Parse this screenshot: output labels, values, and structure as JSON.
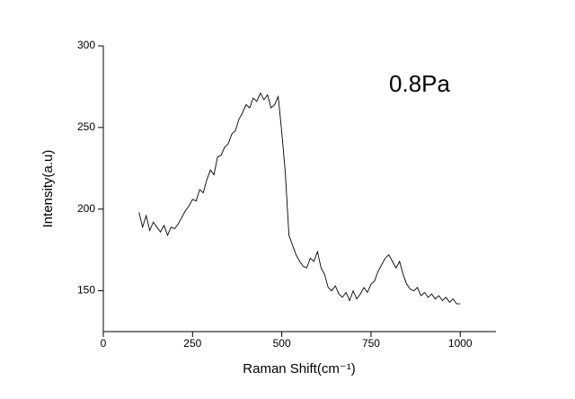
{
  "chart_data": {
    "type": "line",
    "x_label": "Raman Shift(cm⁻¹)",
    "y_label": "Intensity(a.u)",
    "annotation": "0.8Pa",
    "x": [
      100,
      110,
      120,
      130,
      140,
      150,
      160,
      170,
      180,
      190,
      200,
      210,
      220,
      230,
      240,
      250,
      260,
      270,
      280,
      290,
      300,
      310,
      320,
      330,
      340,
      350,
      360,
      370,
      380,
      390,
      400,
      410,
      420,
      430,
      440,
      450,
      460,
      470,
      480,
      490,
      500,
      510,
      520,
      530,
      540,
      550,
      560,
      570,
      580,
      590,
      600,
      610,
      620,
      630,
      640,
      650,
      660,
      670,
      680,
      690,
      700,
      710,
      720,
      730,
      740,
      750,
      760,
      770,
      780,
      790,
      800,
      810,
      820,
      830,
      840,
      850,
      860,
      870,
      880,
      890,
      900,
      910,
      920,
      930,
      940,
      950,
      960,
      970,
      980,
      990,
      1000
    ],
    "series": [
      {
        "name": "0.8Pa",
        "color": "#000000",
        "values": [
          198,
          189,
          196,
          187,
          192,
          189,
          186,
          190,
          184,
          189,
          188,
          191,
          195,
          199,
          202,
          206,
          205,
          212,
          210,
          218,
          224,
          221,
          232,
          233,
          238,
          240,
          246,
          248,
          255,
          259,
          264,
          262,
          268,
          266,
          271,
          267,
          270,
          262,
          264,
          269,
          247,
          222,
          184,
          178,
          172,
          168,
          165,
          164,
          170,
          168,
          174,
          164,
          160,
          152,
          150,
          153,
          148,
          146,
          149,
          144,
          150,
          145,
          148,
          152,
          149,
          154,
          156,
          162,
          166,
          170,
          172,
          168,
          164,
          168,
          160,
          154,
          151,
          150,
          152,
          147,
          149,
          146,
          148,
          145,
          147,
          144,
          146,
          143,
          145,
          142,
          142
        ]
      }
    ],
    "xlim": [
      0,
      1100
    ],
    "xticks": [
      0,
      250,
      500,
      750,
      1000
    ],
    "ylim": [
      125,
      300
    ],
    "yticks": [
      150,
      200,
      250,
      300
    ]
  }
}
